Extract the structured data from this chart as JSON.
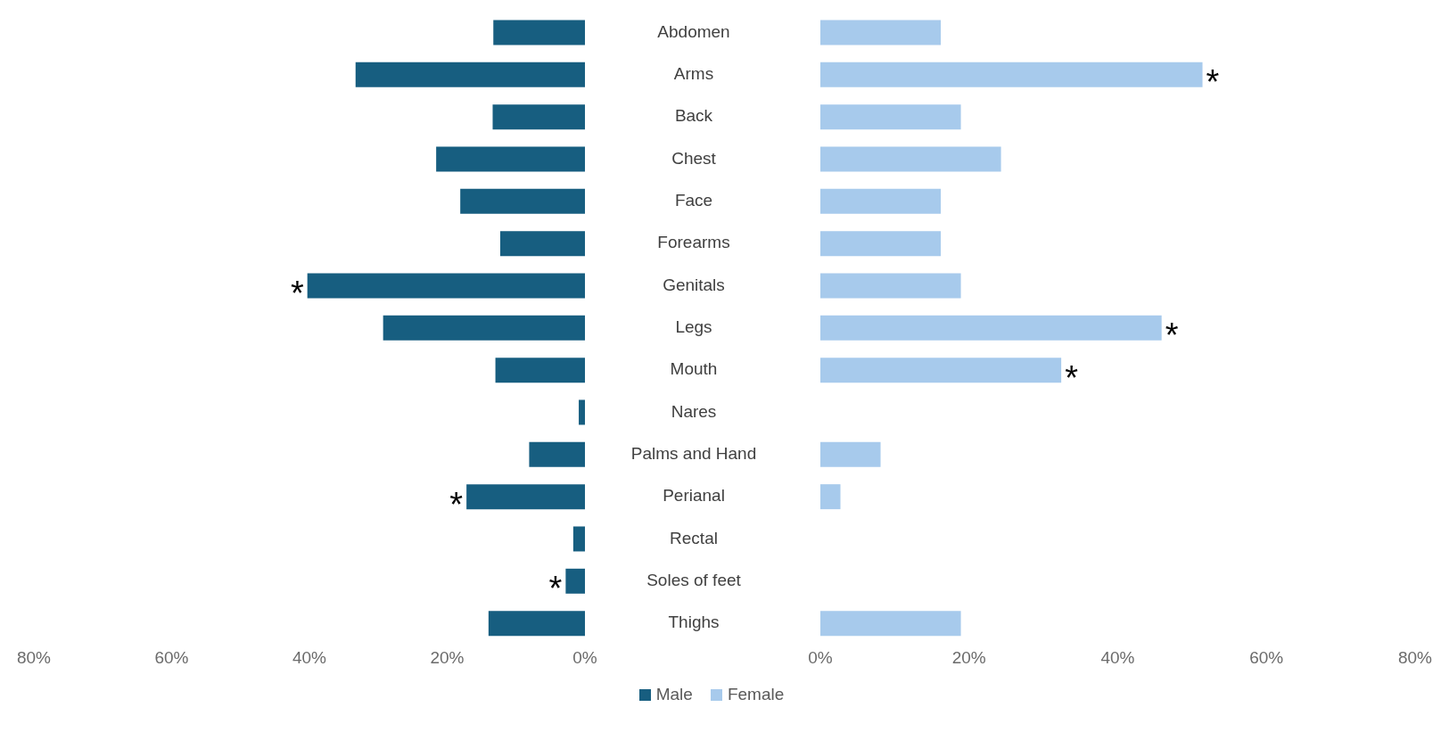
{
  "chart_data": [
    {
      "type": "bar",
      "orientation": "horizontal",
      "categories": [
        "Abdomen",
        "Arms",
        "Back",
        "Chest",
        "Face",
        "Forearms",
        "Genitals",
        "Legs",
        "Mouth",
        "Nares",
        "Palms and Hand",
        "Perianal",
        "Rectal",
        "Soles of feet",
        "Thighs"
      ],
      "series": [
        {
          "name": "Male",
          "color": "#175e80",
          "values": [
            13.3,
            33.3,
            13.4,
            21.6,
            18.1,
            12.3,
            40.3,
            29.3,
            13.0,
            0.9,
            8.1,
            17.2,
            1.7,
            2.8,
            14.0
          ]
        }
      ],
      "xlim": [
        80,
        0
      ],
      "xticks": [
        {
          "value": 80,
          "label": "80%"
        },
        {
          "value": 60,
          "label": "60%"
        },
        {
          "value": 40,
          "label": "40%"
        },
        {
          "value": 20,
          "label": "20%"
        },
        {
          "value": 0,
          "label": "0%"
        }
      ],
      "annotations": [
        {
          "text": "*",
          "x": 40.3,
          "y": "Genitals"
        },
        {
          "text": "*",
          "x": 17.2,
          "y": "Perianal"
        },
        {
          "text": "*",
          "x": 2.8,
          "y": "Soles of feet"
        }
      ],
      "grid": false,
      "legend": "bottom"
    },
    {
      "type": "bar",
      "orientation": "horizontal",
      "categories": [
        "Abdomen",
        "Arms",
        "Back",
        "Chest",
        "Face",
        "Forearms",
        "Genitals",
        "Legs",
        "Mouth",
        "Nares",
        "Palms and Hand",
        "Perianal",
        "Rectal",
        "Soles of feet",
        "Thighs"
      ],
      "series": [
        {
          "name": "Female",
          "color": "#a7caec",
          "values": [
            16.2,
            51.4,
            18.9,
            24.3,
            16.2,
            16.2,
            18.9,
            45.9,
            32.4,
            null,
            8.1,
            2.7,
            null,
            null,
            18.9
          ]
        }
      ],
      "xlim": [
        0,
        80
      ],
      "xticks": [
        {
          "value": 0,
          "label": "0%"
        },
        {
          "value": 20,
          "label": "20%"
        },
        {
          "value": 40,
          "label": "40%"
        },
        {
          "value": 60,
          "label": "60%"
        },
        {
          "value": 80,
          "label": "80%"
        }
      ],
      "annotations": [
        {
          "text": "*",
          "x": 51.4,
          "y": "Arms"
        },
        {
          "text": "*",
          "x": 45.9,
          "y": "Legs"
        },
        {
          "text": "*",
          "x": 32.4,
          "y": "Mouth"
        }
      ],
      "tick_labels": "x",
      "grid": false,
      "legend": "bottom"
    }
  ]
}
